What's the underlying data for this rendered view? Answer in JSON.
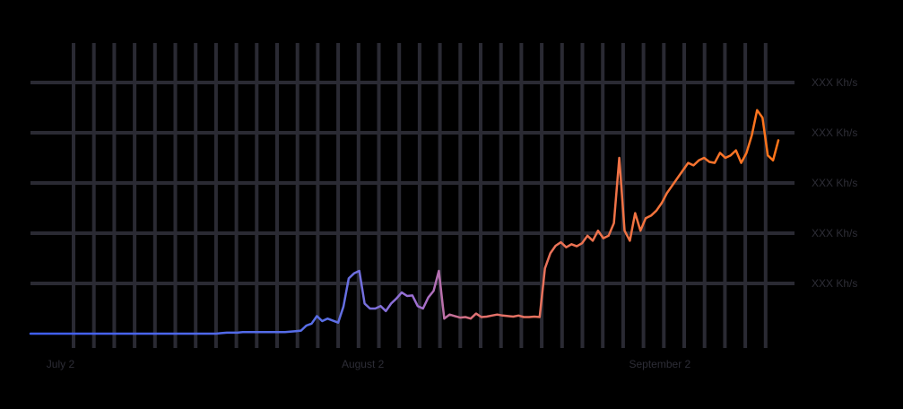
{
  "chart_data": {
    "type": "line",
    "title": "",
    "xlabel": "",
    "ylabel": "",
    "grid": true,
    "y_tick_labels": [
      "XXX Kh/s",
      "XXX Kh/s",
      "XXX Kh/s",
      "XXX Kh/s",
      "XXX Kh/s"
    ],
    "x_tick_labels": [
      "July 2",
      "August 2",
      "September 2"
    ],
    "x_tick_index": [
      6,
      63,
      119
    ],
    "series": [
      {
        "colors": {
          "start": "#3f5ef0",
          "end": "#ff7418"
        },
        "values": [
          0,
          0,
          0,
          0,
          0,
          0,
          0,
          0,
          0,
          0,
          0,
          0,
          0,
          0,
          0,
          0,
          0,
          0,
          0,
          0,
          0,
          0,
          0,
          0,
          0,
          0,
          0,
          0,
          0,
          0,
          0,
          0,
          0,
          0,
          0,
          0,
          0.01,
          0.02,
          0.02,
          0.02,
          0.03,
          0.03,
          0.03,
          0.03,
          0.03,
          0.03,
          0.03,
          0.03,
          0.03,
          0.04,
          0.05,
          0.06,
          0.16,
          0.2,
          0.35,
          0.25,
          0.3,
          0.26,
          0.22,
          0.54,
          1.1,
          1.2,
          1.25,
          0.6,
          0.5,
          0.5,
          0.55,
          0.45,
          0.6,
          0.7,
          0.82,
          0.75,
          0.76,
          0.55,
          0.5,
          0.72,
          0.85,
          1.25,
          0.3,
          0.38,
          0.35,
          0.32,
          0.33,
          0.3,
          0.4,
          0.33,
          0.34,
          0.36,
          0.38,
          0.36,
          0.35,
          0.34,
          0.36,
          0.33,
          0.33,
          0.34,
          0.33,
          1.3,
          1.6,
          1.75,
          1.82,
          1.72,
          1.78,
          1.74,
          1.8,
          1.95,
          1.85,
          2.05,
          1.9,
          1.95,
          2.2,
          3.5,
          2.05,
          1.85,
          2.4,
          2.05,
          2.3,
          2.35,
          2.45,
          2.6,
          2.8,
          2.95,
          3.1,
          3.25,
          3.4,
          3.35,
          3.45,
          3.5,
          3.42,
          3.4,
          3.6,
          3.5,
          3.55,
          3.65,
          3.4,
          3.6,
          3.95,
          4.45,
          4.3,
          3.55,
          3.45,
          3.85
        ]
      }
    ],
    "ylim": [
      0,
      5
    ]
  }
}
